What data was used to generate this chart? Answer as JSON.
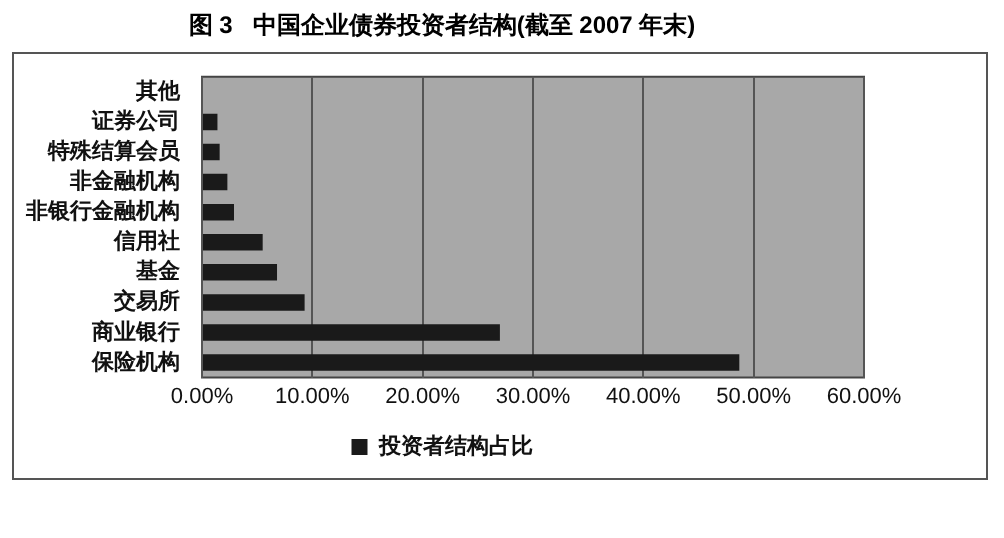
{
  "chart_data": {
    "type": "bar",
    "orientation": "horizontal",
    "title": "图 3   中国企业债券投资者结构(截至 2007 年末)",
    "categories": [
      "其他",
      "证券公司",
      "特殊结算会员",
      "非金融机构",
      "非银行金融机构",
      "信用社",
      "基金",
      "交易所",
      "商业银行",
      "保险机构"
    ],
    "series": [
      {
        "name": "投资者结构占比",
        "color": "#1a1a1a",
        "values": [
          null,
          1.4,
          1.6,
          2.3,
          2.9,
          5.5,
          6.8,
          9.3,
          27.0,
          48.7
        ]
      }
    ],
    "xlim": [
      0,
      60
    ],
    "xticks": [
      {
        "value": 0,
        "label": "0.00%"
      },
      {
        "value": 10,
        "label": "10.00%"
      },
      {
        "value": 20,
        "label": "20.00%"
      },
      {
        "value": 30,
        "label": "30.00%"
      },
      {
        "value": 40,
        "label": "40.00%"
      },
      {
        "value": 50,
        "label": "50.00%"
      },
      {
        "value": 60,
        "label": "60.00%"
      }
    ],
    "grid": "x",
    "legend": "bottom"
  }
}
